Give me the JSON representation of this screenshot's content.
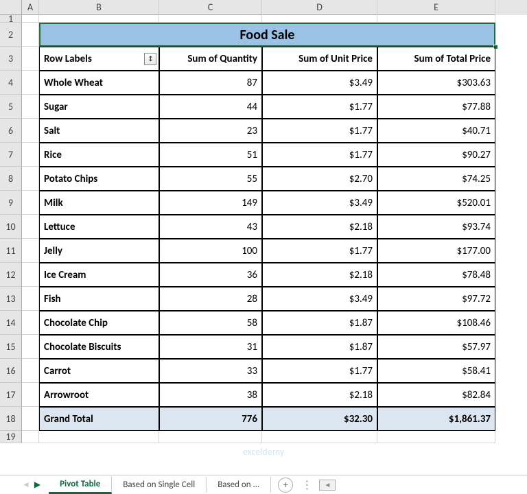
{
  "columns": [
    "A",
    "B",
    "C",
    "D",
    "E"
  ],
  "row_numbers": [
    1,
    2,
    3,
    4,
    5,
    6,
    7,
    8,
    9,
    10,
    11,
    12,
    13,
    14,
    15,
    16,
    17,
    18,
    19
  ],
  "title": "Food Sale",
  "headers": {
    "row_labels": "Row Labels",
    "qty": "Sum of Quantity",
    "unit": "Sum of Unit Price",
    "total": "Sum of Total Price"
  },
  "rows": [
    {
      "label": "Whole Wheat",
      "qty": "87",
      "unit": "$3.49",
      "total": "$303.63"
    },
    {
      "label": "Sugar",
      "qty": "44",
      "unit": "$1.77",
      "total": "$77.88"
    },
    {
      "label": "Salt",
      "qty": "23",
      "unit": "$1.77",
      "total": "$40.71"
    },
    {
      "label": "Rice",
      "qty": "51",
      "unit": "$1.77",
      "total": "$90.27"
    },
    {
      "label": "Potato Chips",
      "qty": "55",
      "unit": "$2.70",
      "total": "$74.25"
    },
    {
      "label": "Milk",
      "qty": "149",
      "unit": "$3.49",
      "total": "$520.01"
    },
    {
      "label": "Lettuce",
      "qty": "43",
      "unit": "$2.18",
      "total": "$93.74"
    },
    {
      "label": "Jelly",
      "qty": "100",
      "unit": "$1.77",
      "total": "$177.00"
    },
    {
      "label": "Ice Cream",
      "qty": "36",
      "unit": "$2.18",
      "total": "$78.48"
    },
    {
      "label": "Fish",
      "qty": "28",
      "unit": "$3.49",
      "total": "$97.72"
    },
    {
      "label": "Chocolate Chip",
      "qty": "58",
      "unit": "$1.87",
      "total": "$108.46"
    },
    {
      "label": "Chocolate Biscuits",
      "qty": "31",
      "unit": "$1.87",
      "total": "$57.97"
    },
    {
      "label": "Carrot",
      "qty": "33",
      "unit": "$1.77",
      "total": "$58.41"
    },
    {
      "label": "Arrowroot",
      "qty": "38",
      "unit": "$2.18",
      "total": "$82.84"
    }
  ],
  "grand_total": {
    "label": "Grand Total",
    "qty": "776",
    "unit": "$32.30",
    "total": "$1,861.37"
  },
  "tabs": {
    "active": "Pivot Table",
    "t2": "Based on Single Cell",
    "t3": "Based on ..."
  },
  "filter_glyph": "↕",
  "watermark": "exceldemy",
  "colors": {
    "title_bg": "#9bc2e6",
    "selection_border": "#1a7044",
    "total_bg": "#dce6f1",
    "tab_active": "#0a6b3d"
  }
}
